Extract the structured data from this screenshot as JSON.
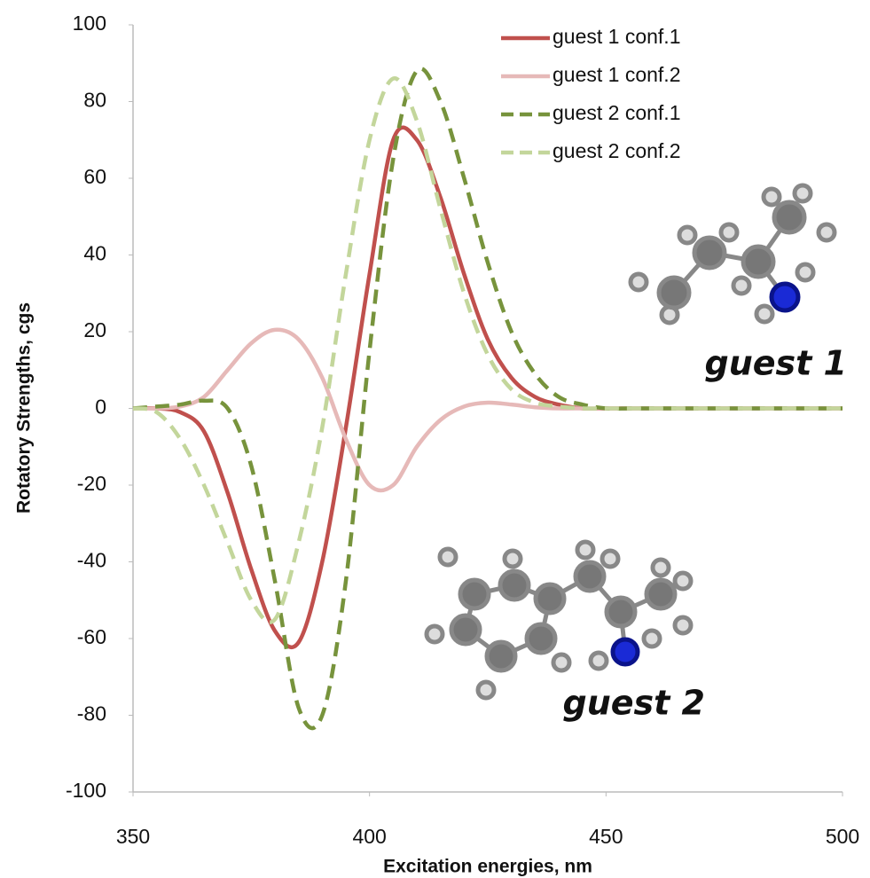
{
  "chart_data": {
    "type": "line",
    "x_label": "Excitation energies, nm",
    "y_label": "Rotatory Strengths, cgs",
    "annotations": [
      "guest 1",
      "guest 2"
    ],
    "xlim": [
      350,
      500
    ],
    "xticks": [
      350,
      400,
      450,
      500
    ],
    "ylim": [
      -100,
      100
    ],
    "yticks": [
      -100,
      -80,
      -60,
      -40,
      -20,
      0,
      20,
      40,
      60,
      80,
      100
    ],
    "grid": false,
    "legend": "top-right",
    "x": [
      350,
      355,
      360,
      365,
      370,
      375,
      380,
      385,
      390,
      395,
      400,
      405,
      410,
      415,
      420,
      425,
      430,
      435,
      440,
      445,
      450,
      455,
      460,
      465,
      470,
      475,
      480,
      485,
      490,
      495,
      500
    ],
    "series": [
      {
        "name": "guest 1 conf.1",
        "color": "#c0504d",
        "dash": "solid",
        "values": [
          0,
          0,
          -1,
          -6,
          -22,
          -42,
          -58,
          -61,
          -40,
          -5,
          35,
          70,
          70,
          55,
          35,
          18,
          8,
          3,
          1,
          0,
          0,
          0,
          0,
          0,
          0,
          0,
          0,
          0,
          0,
          0,
          0
        ]
      },
      {
        "name": "guest 1 conf.2",
        "color": "#e6b9b8",
        "dash": "solid",
        "values": [
          0,
          0,
          0.5,
          3,
          10,
          17,
          20.5,
          18,
          8,
          -8,
          -20,
          -20,
          -10,
          -3,
          0.5,
          1.5,
          1,
          0.3,
          0,
          0,
          0,
          0,
          0,
          0,
          0,
          0,
          0,
          0,
          0,
          0,
          0
        ]
      },
      {
        "name": "guest 2 conf.1",
        "color": "#77933c",
        "dash": "dashed",
        "values": [
          0,
          0.5,
          1,
          2,
          0,
          -15,
          -45,
          -78,
          -80,
          -45,
          15,
          65,
          88,
          80,
          60,
          38,
          20,
          9,
          3,
          1,
          0,
          0,
          0,
          0,
          0,
          0,
          0,
          0,
          0,
          0,
          0
        ]
      },
      {
        "name": "guest 2 conf.2",
        "color": "#c3d69b",
        "dash": "dashed",
        "values": [
          0,
          -1,
          -8,
          -20,
          -35,
          -50,
          -55,
          -35,
          -5,
          35,
          70,
          86,
          75,
          52,
          30,
          14,
          5,
          1.5,
          0.5,
          0,
          0,
          0,
          0,
          0,
          0,
          0,
          0,
          0,
          0,
          0,
          0
        ]
      }
    ]
  }
}
